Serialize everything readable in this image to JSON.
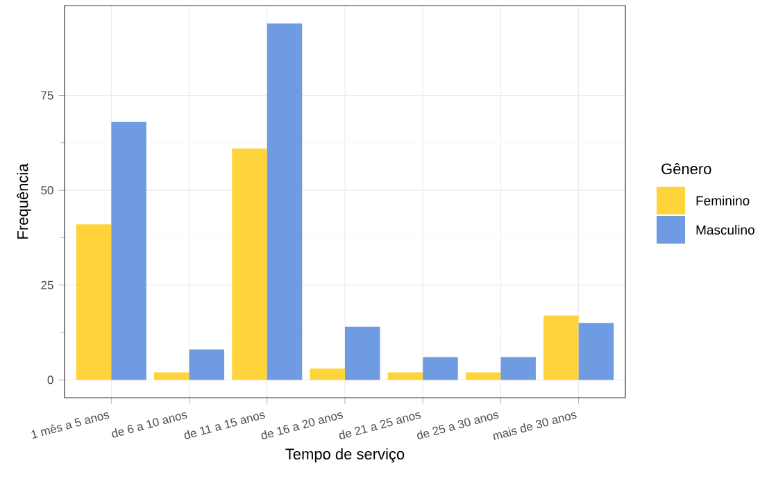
{
  "chart_data": {
    "type": "bar",
    "xlabel": "Tempo de serviço",
    "ylabel": "Frequência",
    "legend_title": "Gênero",
    "categories": [
      "1 mês a 5 anos",
      "de 6 a 10 anos",
      "de 11 a 15 anos",
      "de 16 a 20 anos",
      "de 21 a 25 anos",
      "de 25 a 30 anos",
      "mais de 30 anos"
    ],
    "series": [
      {
        "name": "Feminino",
        "color": "#ffd43b",
        "values": [
          41,
          2,
          61,
          3,
          2,
          2,
          17
        ]
      },
      {
        "name": "Masculino",
        "color": "#6f9be3",
        "values": [
          68,
          8,
          94,
          14,
          6,
          6,
          15
        ]
      }
    ],
    "ylim": [
      -4.7,
      98.7
    ],
    "yticks": [
      0,
      25,
      50,
      75
    ],
    "grid": true,
    "legend": "right"
  }
}
